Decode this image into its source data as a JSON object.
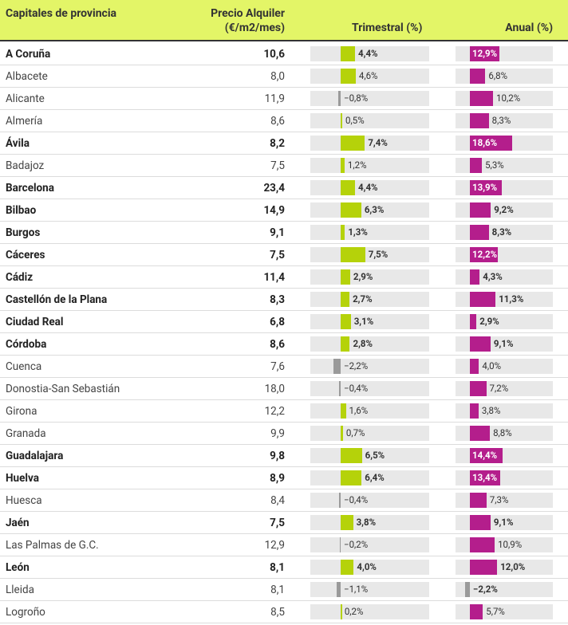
{
  "header": {
    "city": "Capitales de provincia",
    "price": "Precio Alquiler (€/m2/mes)",
    "quarterly": "Trimestral (%)",
    "annual": "Anual (%)"
  },
  "colors": {
    "header_bg": "#e3f567",
    "quarterly_positive": "#b5d20a",
    "negative": "#9a9a9a",
    "annual_positive": "#b41e8c",
    "track": "#e8e8e8"
  },
  "chart_data": {
    "type": "table",
    "title": "",
    "columns": [
      "Capitales de provincia",
      "Precio Alquiler (€/m2/mes)",
      "Trimestral (%)",
      "Anual (%)"
    ],
    "rows": [
      {
        "city": "A Coruña",
        "price": "10,6",
        "tri": 4.4,
        "tri_label": "4,4%",
        "anu": 12.9,
        "anu_label": "12,9%",
        "bold": true
      },
      {
        "city": "Albacete",
        "price": "8,0",
        "tri": 4.6,
        "tri_label": "4,6%",
        "anu": 6.8,
        "anu_label": "6,8%",
        "bold": false
      },
      {
        "city": "Alicante",
        "price": "11,9",
        "tri": -0.8,
        "tri_label": "−0,8%",
        "anu": 10.2,
        "anu_label": "10,2%",
        "bold": false
      },
      {
        "city": "Almería",
        "price": "8,6",
        "tri": 0.5,
        "tri_label": "0,5%",
        "anu": 8.3,
        "anu_label": "8,3%",
        "bold": false
      },
      {
        "city": "Ávila",
        "price": "8,2",
        "tri": 7.4,
        "tri_label": "7,4%",
        "anu": 18.6,
        "anu_label": "18,6%",
        "bold": true
      },
      {
        "city": "Badajoz",
        "price": "7,5",
        "tri": 1.2,
        "tri_label": "1,2%",
        "anu": 5.3,
        "anu_label": "5,3%",
        "bold": false
      },
      {
        "city": "Barcelona",
        "price": "23,4",
        "tri": 4.4,
        "tri_label": "4,4%",
        "anu": 13.9,
        "anu_label": "13,9%",
        "bold": true
      },
      {
        "city": "Bilbao",
        "price": "14,9",
        "tri": 6.3,
        "tri_label": "6,3%",
        "anu": 9.2,
        "anu_label": "9,2%",
        "bold": true
      },
      {
        "city": "Burgos",
        "price": "9,1",
        "tri": 1.3,
        "tri_label": "1,3%",
        "anu": 8.3,
        "anu_label": "8,3%",
        "bold": true
      },
      {
        "city": "Cáceres",
        "price": "7,5",
        "tri": 7.5,
        "tri_label": "7,5%",
        "anu": 12.2,
        "anu_label": "12,2%",
        "bold": true
      },
      {
        "city": "Cádiz",
        "price": "11,4",
        "tri": 2.9,
        "tri_label": "2,9%",
        "anu": 4.3,
        "anu_label": "4,3%",
        "bold": true
      },
      {
        "city": "Castellón de la Plana",
        "price": "8,3",
        "tri": 2.7,
        "tri_label": "2,7%",
        "anu": 11.3,
        "anu_label": "11,3%",
        "bold": true
      },
      {
        "city": "Ciudad Real",
        "price": "6,8",
        "tri": 3.1,
        "tri_label": "3,1%",
        "anu": 2.9,
        "anu_label": "2,9%",
        "bold": true
      },
      {
        "city": "Córdoba",
        "price": "8,6",
        "tri": 2.8,
        "tri_label": "2,8%",
        "anu": 9.1,
        "anu_label": "9,1%",
        "bold": true
      },
      {
        "city": "Cuenca",
        "price": "7,6",
        "tri": -2.2,
        "tri_label": "−2,2%",
        "anu": 4.0,
        "anu_label": "4,0%",
        "bold": false
      },
      {
        "city": "Donostia-San Sebastián",
        "price": "18,0",
        "tri": -0.4,
        "tri_label": "−0,4%",
        "anu": 7.2,
        "anu_label": "7,2%",
        "bold": false
      },
      {
        "city": "Girona",
        "price": "12,2",
        "tri": 1.6,
        "tri_label": "1,6%",
        "anu": 3.8,
        "anu_label": "3,8%",
        "bold": false
      },
      {
        "city": "Granada",
        "price": "9,9",
        "tri": 0.7,
        "tri_label": "0,7%",
        "anu": 8.8,
        "anu_label": "8,8%",
        "bold": false
      },
      {
        "city": "Guadalajara",
        "price": "9,8",
        "tri": 6.5,
        "tri_label": "6,5%",
        "anu": 14.4,
        "anu_label": "14,4%",
        "bold": true
      },
      {
        "city": "Huelva",
        "price": "8,9",
        "tri": 6.4,
        "tri_label": "6,4%",
        "anu": 13.4,
        "anu_label": "13,4%",
        "bold": true
      },
      {
        "city": "Huesca",
        "price": "8,4",
        "tri": -0.4,
        "tri_label": "−0,4%",
        "anu": 7.3,
        "anu_label": "7,3%",
        "bold": false
      },
      {
        "city": "Jaén",
        "price": "7,5",
        "tri": 3.8,
        "tri_label": "3,8%",
        "anu": 9.1,
        "anu_label": "9,1%",
        "bold": true
      },
      {
        "city": "Las Palmas de G.C.",
        "price": "12,9",
        "tri": -0.2,
        "tri_label": "−0,2%",
        "anu": 10.9,
        "anu_label": "10,9%",
        "bold": false
      },
      {
        "city": "León",
        "price": "8,1",
        "tri": 4.0,
        "tri_label": "4,0%",
        "anu": 12.0,
        "anu_label": "12,0%",
        "bold": true
      },
      {
        "city": "Lleida",
        "price": "8,1",
        "tri": -1.1,
        "tri_label": "−1,1%",
        "anu": -2.2,
        "anu_label": "−2,2%",
        "bold": false
      },
      {
        "city": "Logroño",
        "price": "8,5",
        "tri": 0.2,
        "tri_label": "0,2%",
        "anu": 5.7,
        "anu_label": "5,7%",
        "bold": false
      }
    ]
  }
}
